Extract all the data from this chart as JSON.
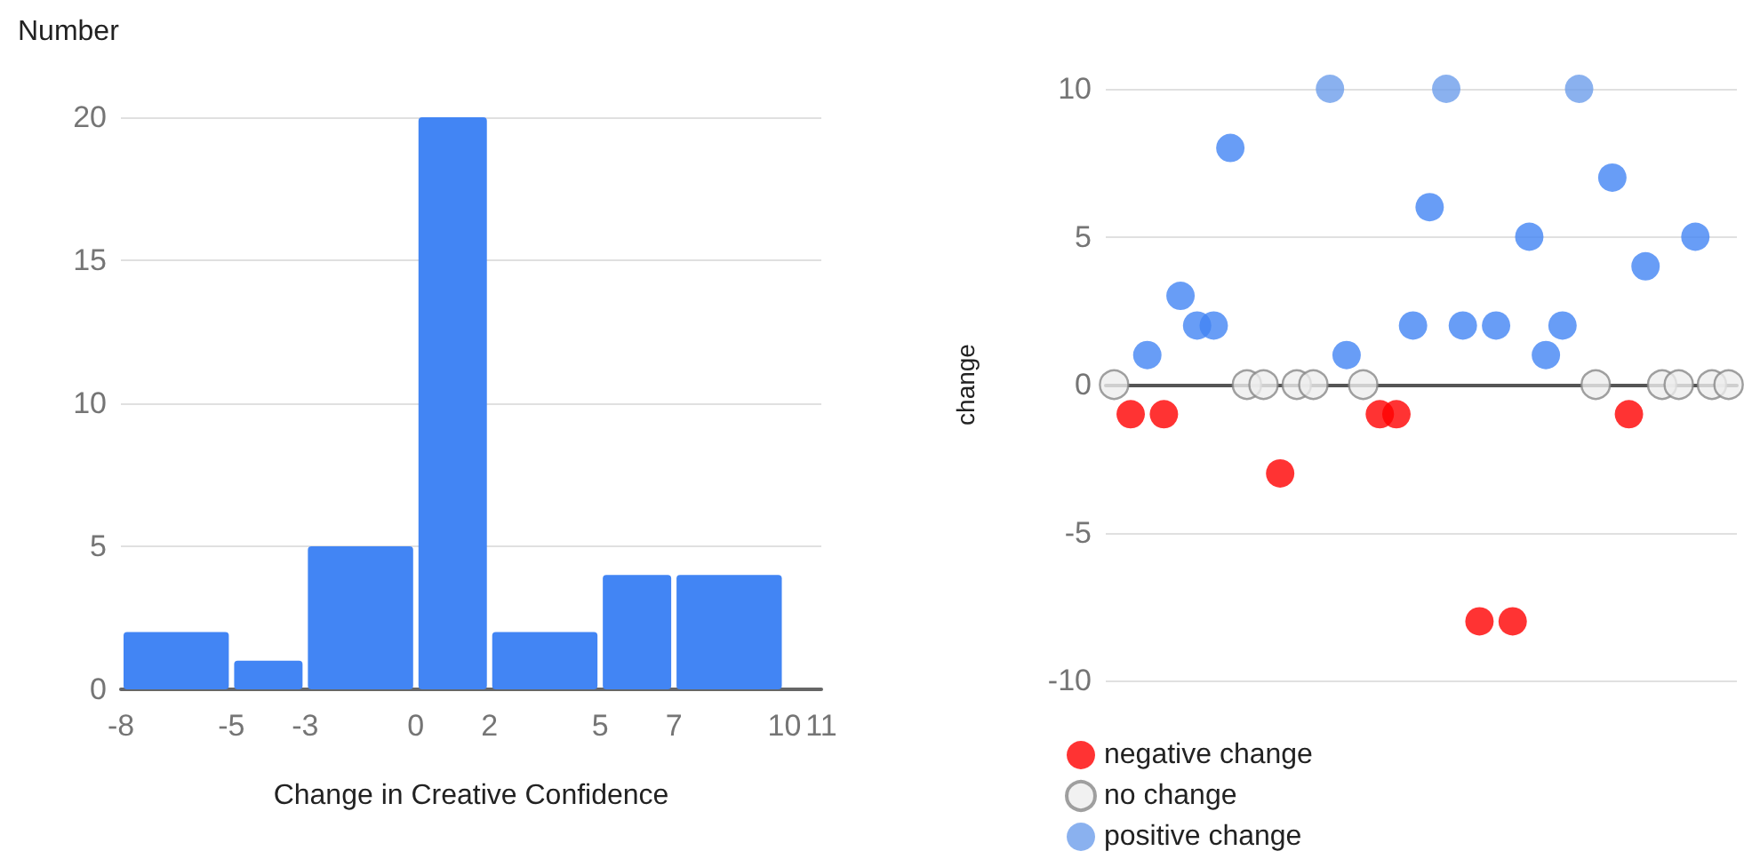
{
  "chart_data": [
    {
      "type": "histogram",
      "ylabel": "Number",
      "xlabel": "Change in Creative Confidence",
      "bins": [
        -8,
        -5,
        -3,
        0,
        2,
        5,
        7,
        10
      ],
      "values": [
        2,
        1,
        5,
        20,
        2,
        4,
        4
      ],
      "color": "#4285f4",
      "xlim": [
        -8,
        11
      ],
      "xticks": [
        -8,
        -5,
        -3,
        0,
        2,
        5,
        7,
        10,
        11
      ],
      "ylim": [
        0,
        20
      ],
      "yticks": [
        0,
        5,
        10,
        15,
        20
      ],
      "grid": "y"
    },
    {
      "type": "scatter",
      "ylabel": "change",
      "categories": [
        null,
        null,
        null,
        null,
        null,
        null,
        null,
        null,
        null,
        null,
        null,
        null,
        null,
        null,
        null,
        null,
        null,
        null,
        null,
        null,
        null,
        null,
        null,
        null,
        null,
        null,
        null,
        null,
        null,
        null,
        null,
        null,
        null,
        null,
        null,
        null,
        null,
        null
      ],
      "series": [
        {
          "name": "negative change",
          "color": "#ff0000",
          "values": [
            null,
            -1,
            null,
            -1,
            null,
            null,
            null,
            null,
            null,
            null,
            -3,
            null,
            null,
            null,
            null,
            null,
            -1,
            -1,
            null,
            null,
            null,
            null,
            -8,
            null,
            -8,
            null,
            null,
            null,
            null,
            null,
            null,
            -1,
            null,
            null,
            null,
            null,
            null,
            null
          ]
        },
        {
          "name": "no change",
          "color": "#eeeeee",
          "values": [
            0,
            null,
            null,
            null,
            null,
            null,
            null,
            null,
            0,
            0,
            null,
            0,
            0,
            null,
            null,
            0,
            null,
            null,
            null,
            null,
            null,
            null,
            null,
            null,
            null,
            null,
            null,
            null,
            null,
            0,
            null,
            null,
            null,
            0,
            0,
            null,
            0,
            0
          ]
        },
        {
          "name": "positive change",
          "color": "#6d9eeb",
          "values": [
            null,
            null,
            null,
            null,
            null,
            null,
            null,
            null,
            null,
            null,
            null,
            null,
            null,
            10,
            null,
            null,
            null,
            null,
            null,
            null,
            10,
            null,
            null,
            null,
            null,
            null,
            null,
            null,
            10,
            null,
            null,
            null,
            null,
            null,
            null,
            null,
            null,
            null
          ]
        },
        {
          "color": "#4285f4",
          "values": [
            null,
            null,
            1,
            null,
            3,
            2,
            2,
            8,
            null,
            null,
            null,
            null,
            null,
            null,
            1,
            null,
            null,
            null,
            2,
            6,
            null,
            2,
            null,
            2,
            null,
            5,
            1,
            2,
            null,
            null,
            7,
            null,
            4,
            null,
            null,
            5,
            null,
            null
          ]
        }
      ],
      "ylim": [
        -10,
        10
      ],
      "yticks": [
        -10,
        -5,
        0,
        5,
        10
      ],
      "grid": "y",
      "legend": "bottom",
      "marker": "circle",
      "tick_labels": "y"
    }
  ]
}
